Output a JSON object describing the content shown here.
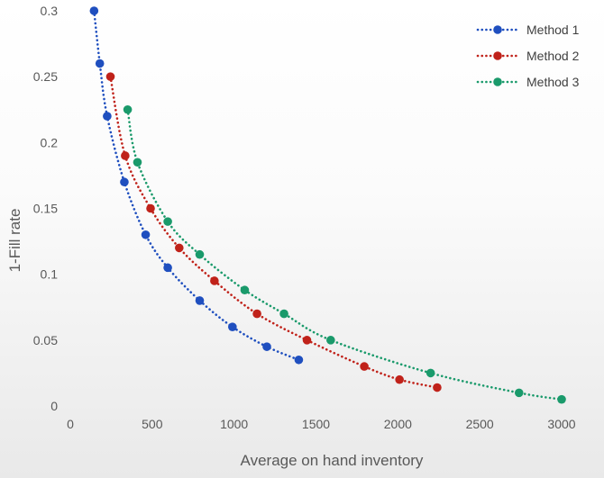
{
  "chart_data": {
    "type": "scatter",
    "title": "",
    "xlabel": "Average on hand inventory",
    "ylabel": "1-Fill rate",
    "xlim": [
      0,
      3000
    ],
    "ylim": [
      0,
      0.3
    ],
    "xticks": [
      0,
      500,
      1000,
      1500,
      2000,
      2500,
      3000
    ],
    "yticks": [
      0,
      0.05,
      0.1,
      0.15,
      0.2,
      0.25,
      0.3
    ],
    "xtick_labels": [
      "0",
      "500",
      "1000",
      "1500",
      "2000",
      "2500",
      "3000"
    ],
    "ytick_labels": [
      "0",
      "0.05",
      "0.1",
      "0.15",
      "0.2",
      "0.25",
      "0.3"
    ],
    "grid": false,
    "legend_position": "top-right",
    "line_style": "dotted, smoothed, with markers",
    "series": [
      {
        "name": "Method 1",
        "color": "#1f4fbf",
        "x": [
          145,
          180,
          225,
          330,
          460,
          595,
          790,
          990,
          1200,
          1395
        ],
        "y": [
          0.3,
          0.26,
          0.22,
          0.17,
          0.13,
          0.105,
          0.08,
          0.06,
          0.045,
          0.035
        ]
      },
      {
        "name": "Method 2",
        "color": "#c0221a",
        "x": [
          245,
          335,
          490,
          665,
          880,
          1140,
          1445,
          1795,
          2010,
          2240
        ],
        "y": [
          0.25,
          0.19,
          0.15,
          0.12,
          0.095,
          0.07,
          0.05,
          0.03,
          0.02,
          0.014
        ]
      },
      {
        "name": "Method 3",
        "color": "#1a9a6b",
        "x": [
          350,
          410,
          595,
          790,
          1065,
          1305,
          1590,
          2200,
          2740,
          3000
        ],
        "y": [
          0.225,
          0.185,
          0.14,
          0.115,
          0.088,
          0.07,
          0.05,
          0.025,
          0.01,
          0.005
        ]
      }
    ]
  }
}
